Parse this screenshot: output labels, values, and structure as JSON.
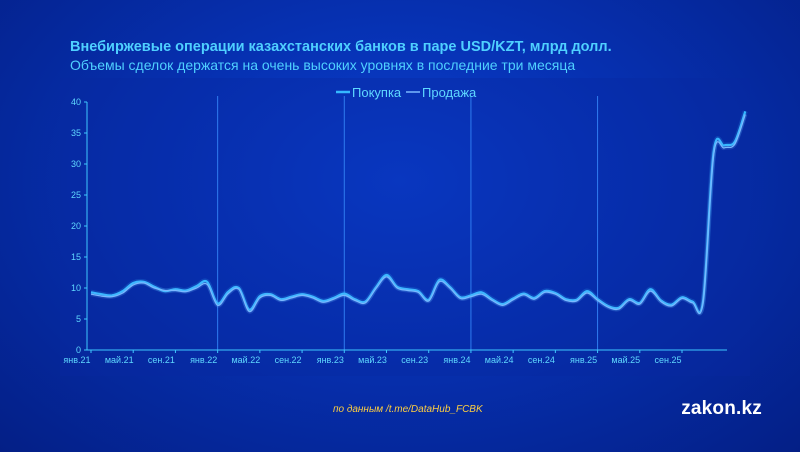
{
  "header": {
    "title": "Внебиржевые операции казахстанских банков в паре USD/KZT, млрд долл.",
    "subtitle": "Объемы сделок держатся на очень высоких уровнях в последние три месяца"
  },
  "footer": {
    "source": "по данным /t.me/DataHub_FCBK",
    "logo": "zakon.kz"
  },
  "colors": {
    "purchase": "#35b8ff",
    "sale": "#7ab8ff",
    "axis": "#3fc8ff",
    "tick_text": "#5fd8ff",
    "vline": "#2f7cf0"
  },
  "chart_data": {
    "type": "line",
    "title": "Внебиржевые операции казахстанских банков в паре USD/KZT, млрд долл.",
    "subtitle": "Объемы сделок держатся на очень высоких уровнях в последние три месяца",
    "xlabel": "",
    "ylabel": "",
    "ylim": [
      0,
      40
    ],
    "yticks": [
      0,
      5,
      10,
      15,
      20,
      25,
      30,
      35,
      40
    ],
    "xticks": [
      "янв.21",
      "май.21",
      "сен.21",
      "янв.22",
      "май.22",
      "сен.22",
      "янв.23",
      "май.23",
      "сен.23",
      "янв.24",
      "май.24",
      "сен.24",
      "янв.25",
      "май.25",
      "сен.25"
    ],
    "vertical_lines_at": [
      "янв.22",
      "янв.23",
      "янв.24",
      "янв.25"
    ],
    "legend_position": "top-center",
    "grid": false,
    "series": [
      {
        "name": "Покупка",
        "values": [
          9.3,
          9.0,
          8.8,
          9.5,
          10.8,
          11.0,
          10.2,
          9.5,
          9.8,
          9.6,
          10.3,
          11.0,
          7.5,
          9.4,
          10.0,
          6.5,
          8.7,
          9.0,
          8.2,
          8.6,
          9.0,
          8.6,
          7.9,
          8.4,
          9.1,
          8.2,
          7.8,
          10.1,
          12.1,
          10.2,
          9.8,
          9.5,
          8.1,
          11.3,
          10.2,
          8.5,
          8.8,
          9.3,
          8.2,
          7.4,
          8.3,
          9.1,
          8.4,
          9.5,
          9.2,
          8.2,
          8.1,
          9.5,
          8.2,
          7.1,
          6.8,
          8.2,
          7.6,
          9.8,
          8.0,
          7.3,
          8.5,
          7.8,
          7.9,
          32.0,
          33.0,
          33.6,
          38.5
        ]
      },
      {
        "name": "Продажа",
        "values": [
          9.0,
          8.7,
          8.6,
          9.2,
          10.5,
          10.8,
          10.0,
          9.6,
          9.6,
          9.4,
          10.0,
          10.6,
          7.2,
          9.1,
          9.8,
          6.2,
          8.4,
          8.8,
          8.0,
          8.4,
          8.8,
          8.4,
          7.7,
          8.2,
          8.8,
          8.0,
          7.6,
          9.9,
          11.8,
          10.0,
          9.6,
          9.3,
          7.9,
          11.0,
          10.0,
          8.3,
          8.6,
          9.0,
          8.0,
          7.2,
          8.1,
          8.9,
          8.2,
          9.3,
          9.0,
          8.0,
          7.9,
          9.2,
          8.0,
          6.9,
          6.6,
          8.0,
          7.4,
          9.5,
          7.8,
          7.1,
          8.3,
          7.6,
          7.7,
          31.5,
          32.6,
          33.2,
          38.0
        ]
      }
    ]
  }
}
